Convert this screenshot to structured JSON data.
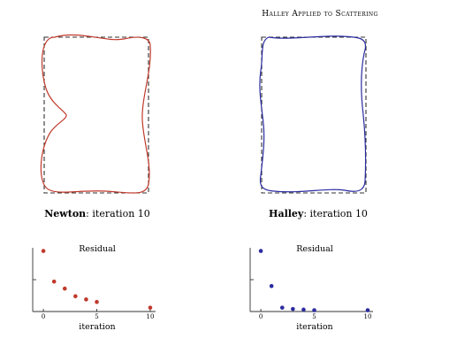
{
  "figure": {
    "title": "Halley Applied to Scattering",
    "colors": {
      "newton": "#c0392b",
      "halley": "#2b2ba0",
      "target": "#333333"
    }
  },
  "panels": [
    {
      "method": "Newton",
      "caption_rest": ": iteration 10"
    },
    {
      "method": "Halley",
      "caption_rest": ": iteration 10"
    }
  ],
  "chart_data": [
    {
      "type": "scatter",
      "title": "Residual",
      "xlabel": "iteration",
      "ylabel": "",
      "x_ticks": [
        0,
        5,
        10
      ],
      "xlim": [
        -1,
        10.5
      ],
      "ylim": [
        0,
        1
      ],
      "points": [
        {
          "x": 0,
          "y": 0.95
        },
        {
          "x": 1,
          "y": 0.47
        },
        {
          "x": 2,
          "y": 0.36
        },
        {
          "x": 3,
          "y": 0.24
        },
        {
          "x": 4,
          "y": 0.19
        },
        {
          "x": 5,
          "y": 0.15
        },
        {
          "x": 10,
          "y": 0.06
        }
      ]
    },
    {
      "type": "scatter",
      "title": "Residual",
      "xlabel": "iteration",
      "ylabel": "",
      "x_ticks": [
        0,
        5,
        10
      ],
      "xlim": [
        -1,
        10.5
      ],
      "ylim": [
        0,
        1
      ],
      "points": [
        {
          "x": 0,
          "y": 0.95
        },
        {
          "x": 1,
          "y": 0.4
        },
        {
          "x": 2,
          "y": 0.06
        },
        {
          "x": 3,
          "y": 0.04
        },
        {
          "x": 4,
          "y": 0.03
        },
        {
          "x": 5,
          "y": 0.02
        },
        {
          "x": 10,
          "y": 0.02
        }
      ]
    }
  ]
}
